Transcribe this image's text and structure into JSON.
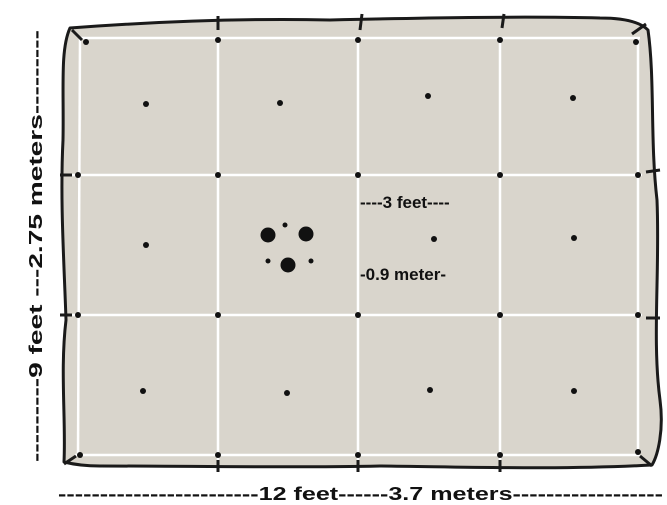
{
  "labels": {
    "width_dimension": "------------------------12 feet------3.7 meters------------------",
    "height_dimension": "---------9 feet ---2.75 meters---------",
    "cell_width_feet": "----3 feet----",
    "cell_width_meters": "-0.9 meter-"
  },
  "grid": {
    "columns": 4,
    "rows": 3
  },
  "colors": {
    "fabric": "#d9d5cc",
    "grid_lines": "#ffffff",
    "outline": "#1a1a1a",
    "dots": "#111111"
  }
}
